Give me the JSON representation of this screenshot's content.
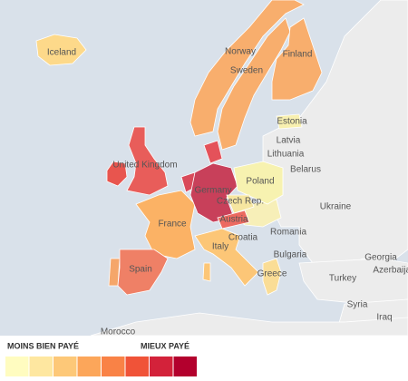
{
  "map": {
    "regions": [
      {
        "name": "Iceland",
        "color": "#fdd98a"
      },
      {
        "name": "Norway",
        "color": "#f8ae6d"
      },
      {
        "name": "Sweden",
        "color": "#f8ae6d"
      },
      {
        "name": "Finland",
        "color": "#f8ae6d"
      },
      {
        "name": "Estonia",
        "color": "#f8f0b0"
      },
      {
        "name": "United Kingdom",
        "color": "#e85d5a"
      },
      {
        "name": "France",
        "color": "#fbb265"
      },
      {
        "name": "Spain",
        "color": "#ef8066"
      },
      {
        "name": "Germany",
        "color": "#c8405a"
      },
      {
        "name": "Poland",
        "color": "#f7f2b0"
      },
      {
        "name": "Czech Rep.",
        "color": "#f6e6a0"
      },
      {
        "name": "Austria",
        "color": "#ec6a60"
      },
      {
        "name": "Italy",
        "color": "#fcc677"
      },
      {
        "name": "Greece",
        "color": "#fadd96"
      }
    ],
    "unlabeled_regions": [
      {
        "color": "#e8554e"
      },
      {
        "color": "#f5a66a"
      },
      {
        "color": "#d94a5a"
      },
      {
        "color": "#e4525a"
      },
      {
        "color": "#f7efb8"
      },
      {
        "color": "#fcc677"
      }
    ],
    "labels": [
      "Latvia",
      "Lithuania",
      "Belarus",
      "Ukraine",
      "Romania",
      "Croatia",
      "Bulgaria",
      "Turkey",
      "Georgia",
      "Azerbaijan",
      "Syria",
      "Iraq",
      "Morocco"
    ],
    "legend": {
      "low_label": "MOINS BIEN PAYÉ",
      "high_label": "MIEUX PAYÉ",
      "colors": [
        "#fffcc0",
        "#fee7a0",
        "#fdc878",
        "#fca65a",
        "#f98246",
        "#f05338",
        "#d3223a",
        "#b3002d"
      ]
    }
  }
}
